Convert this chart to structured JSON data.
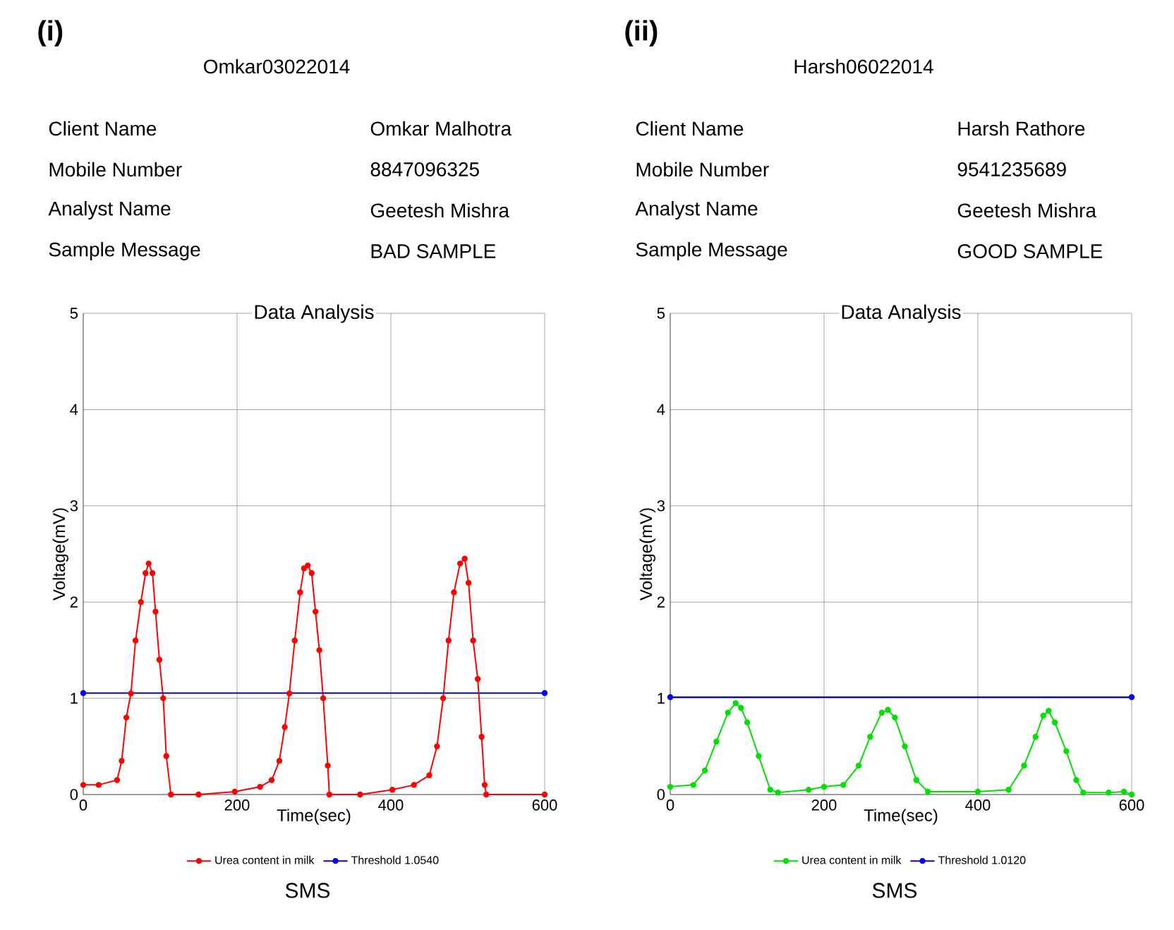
{
  "chart_data": [
    {
      "type": "line",
      "title": "Data Analysis",
      "xlabel": "Time(sec)",
      "ylabel": "Voltage(mV)",
      "annotations": [
        "(i)",
        "Omkar03022014",
        "Client Name",
        "Omkar Malhotra",
        "Mobile Number",
        "8847096325",
        "Analyst Name",
        "Geetesh Mishra",
        "Sample Message",
        "BAD SAMPLE",
        "SMS"
      ],
      "xlim": [
        0,
        600
      ],
      "ylim": [
        0,
        5
      ],
      "xticks": [
        0,
        200,
        400,
        600
      ],
      "yticks": [
        0,
        1,
        2,
        3,
        4,
        5
      ],
      "grid": true,
      "legend": "bottom",
      "marker": "circle",
      "series": [
        {
          "name": "Urea content in milk",
          "color": "#ff0000",
          "x": [
            0,
            20,
            44,
            50,
            56,
            62,
            68,
            75,
            81,
            85,
            90,
            94,
            99,
            104,
            108,
            114,
            150,
            197,
            230,
            245,
            255,
            262,
            268,
            275,
            282,
            287,
            292,
            297,
            302,
            307,
            312,
            318,
            320,
            360,
            402,
            430,
            450,
            460,
            468,
            475,
            482,
            490,
            496,
            501,
            507,
            513,
            518,
            522,
            524,
            600
          ],
          "values": [
            0.1,
            0.1,
            0.15,
            0.35,
            0.8,
            1.05,
            1.6,
            2.0,
            2.3,
            2.4,
            2.3,
            1.9,
            1.4,
            1.0,
            0.4,
            0,
            0,
            0.03,
            0.08,
            0.15,
            0.35,
            0.7,
            1.05,
            1.6,
            2.1,
            2.35,
            2.38,
            2.3,
            1.9,
            1.5,
            1.0,
            0.3,
            0,
            0,
            0.05,
            0.1,
            0.2,
            0.5,
            1.0,
            1.6,
            2.1,
            2.4,
            2.45,
            2.2,
            1.6,
            1.2,
            0.6,
            0.1,
            0,
            0
          ]
        },
        {
          "name": "Threshold 1.0540",
          "color": "#0000ff",
          "x": [
            0,
            600
          ],
          "values": [
            1.054,
            1.054
          ]
        }
      ]
    },
    {
      "type": "line",
      "title": "Data Analysis",
      "xlabel": "Time(sec)",
      "ylabel": "Voltage(mV)",
      "annotations": [
        "(ii)",
        "Harsh06022014",
        "Client Name",
        "Harsh Rathore",
        "Mobile Number",
        "9541235689",
        "Analyst Name",
        "Geetesh Mishra",
        "Sample Message",
        "GOOD SAMPLE",
        "SMS"
      ],
      "xlim": [
        0,
        600
      ],
      "ylim": [
        0,
        5
      ],
      "xticks": [
        0,
        200,
        400,
        600
      ],
      "yticks": [
        0,
        1,
        2,
        3,
        4,
        5
      ],
      "grid": true,
      "legend": "bottom",
      "marker": "circle",
      "series": [
        {
          "name": "Urea content in milk",
          "color": "#00e000",
          "x": [
            0,
            30,
            45,
            60,
            75,
            85,
            92,
            100,
            115,
            130,
            140,
            180,
            200,
            225,
            245,
            260,
            275,
            283,
            292,
            305,
            320,
            335,
            400,
            440,
            460,
            475,
            485,
            492,
            500,
            515,
            528,
            537,
            570,
            590,
            600
          ],
          "values": [
            0.08,
            0.1,
            0.25,
            0.55,
            0.85,
            0.95,
            0.9,
            0.75,
            0.4,
            0.05,
            0.02,
            0.05,
            0.08,
            0.1,
            0.3,
            0.6,
            0.85,
            0.88,
            0.8,
            0.5,
            0.15,
            0.03,
            0.03,
            0.05,
            0.3,
            0.6,
            0.82,
            0.87,
            0.75,
            0.45,
            0.15,
            0.02,
            0.02,
            0.03,
            0
          ]
        },
        {
          "name": "Threshold 1.0120",
          "color": "#0000ff",
          "x": [
            0,
            600
          ],
          "values": [
            1.012,
            1.012
          ]
        }
      ]
    }
  ]
}
